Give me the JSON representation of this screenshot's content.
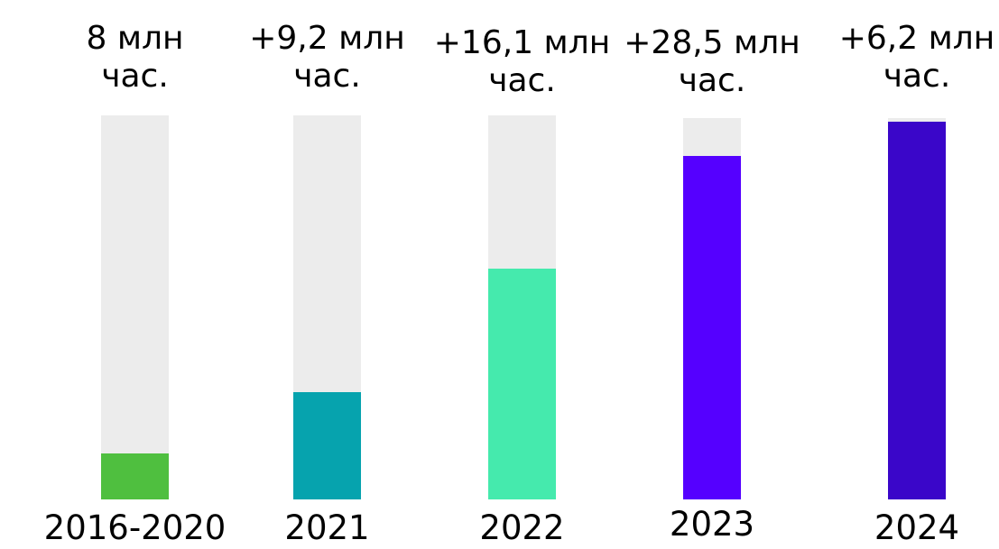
{
  "chart_data": {
    "type": "bar",
    "categories": [
      "2016-2020",
      "2021",
      "2022",
      "2023",
      "2024"
    ],
    "value_labels": [
      "8 млн\nчас.",
      "+9,2 млн\nчас.",
      "+16,1 млн\nчас.",
      "+28,5 млн\nчас.",
      "+6,2 млн\nчас."
    ],
    "values": [
      8,
      9.2,
      16.1,
      28.5,
      6.2
    ],
    "fill_fraction": [
      0.12,
      0.28,
      0.6,
      0.9,
      0.99
    ],
    "colors": [
      "#4fbf3f",
      "#06a3ae",
      "#45eaad",
      "#5500ff",
      "#3a06c9"
    ],
    "track_color": "#ececec",
    "title": "",
    "xlabel": "",
    "ylabel": ""
  }
}
